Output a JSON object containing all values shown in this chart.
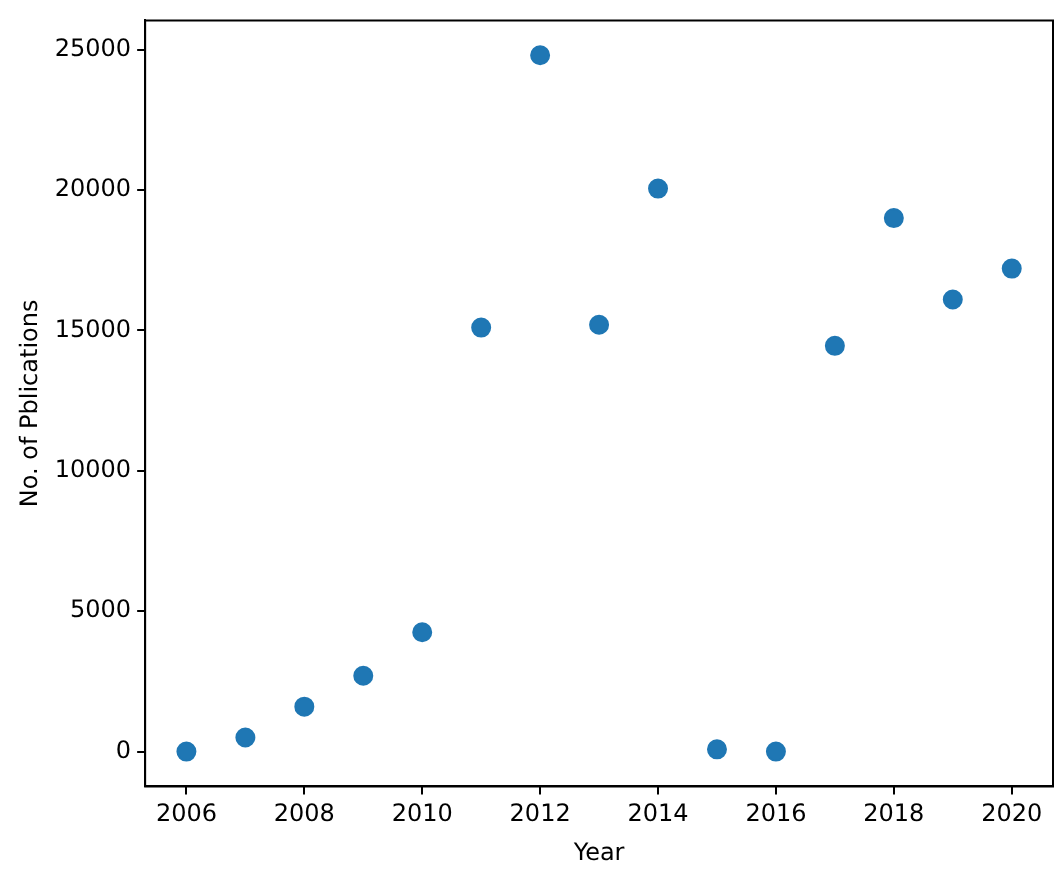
{
  "chart_data": {
    "type": "scatter",
    "xlabel": "Year",
    "ylabel": "No. of Pblications",
    "x": [
      2006,
      2007,
      2008,
      2009,
      2010,
      2011,
      2012,
      2013,
      2014,
      2015,
      2016,
      2017,
      2018,
      2019,
      2020
    ],
    "series": [
      {
        "color": "#1f77b4",
        "values": [
          0,
          500,
          1600,
          2700,
          4250,
          15100,
          24800,
          15200,
          20050,
          80,
          0,
          14450,
          19000,
          16100,
          17200
        ]
      }
    ],
    "xlim": [
      2005.3,
      2020.7
    ],
    "xticks": [
      2006,
      2008,
      2010,
      2012,
      2014,
      2016,
      2018,
      2020
    ],
    "ylim": [
      -1240,
      26040
    ],
    "yticks": [
      0,
      5000,
      10000,
      15000,
      20000,
      25000
    ],
    "grid": false,
    "legend": false,
    "marker": "circle"
  }
}
